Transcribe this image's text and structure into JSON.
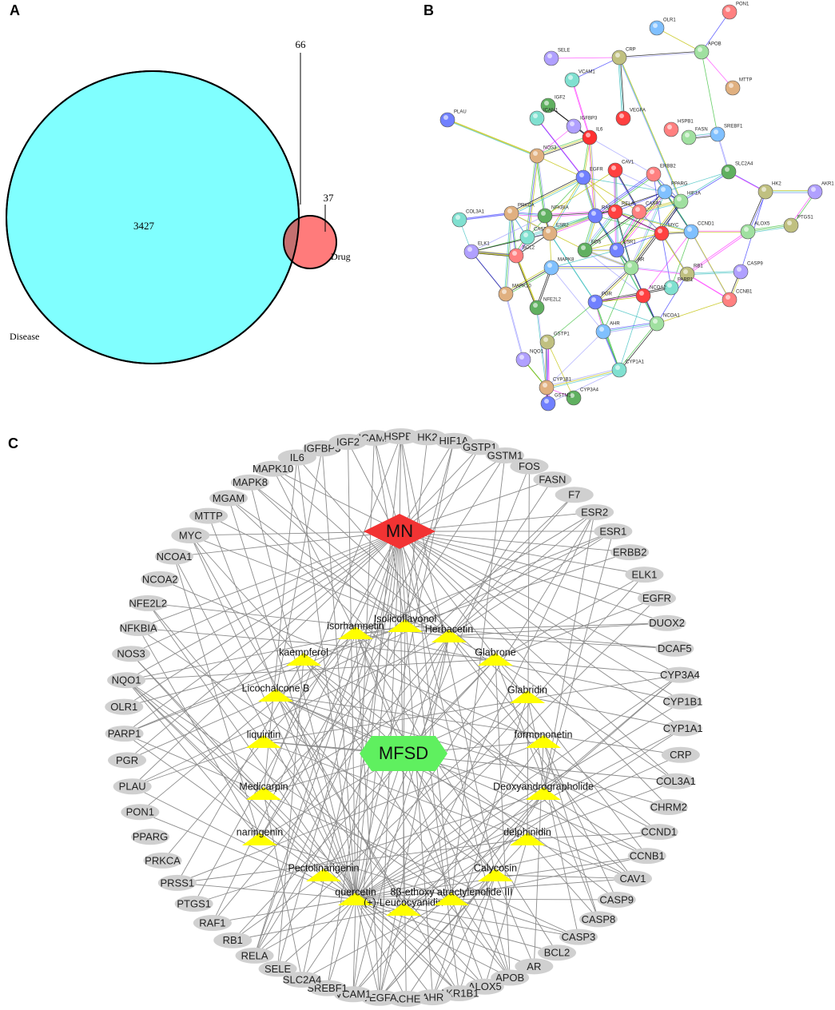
{
  "panel_a": {
    "label": "A",
    "intersection": 66,
    "disease_only": 3427,
    "drug_only": 37,
    "disease_label": "Disease",
    "drug_label": "Drug"
  },
  "panel_b": {
    "label": "B",
    "nodes": [
      "PON1",
      "OLR1",
      "APOB",
      "CRP",
      "SELE",
      "VCAM1",
      "MTTP",
      "IGF2",
      "PLAU",
      "VEGFA",
      "HSPB1",
      "SREBF1",
      "FASN",
      "IL6",
      "IGFBP3",
      "ICAM1",
      "NOS3",
      "SLC2A4",
      "EGFR",
      "CAV1",
      "ERBB2",
      "PPARG",
      "HIF1A",
      "HK2",
      "AKR1",
      "COL3A1",
      "PRKCA",
      "NFKBIA",
      "RAF1",
      "RELA",
      "CASP3",
      "CCND1",
      "ALOX5",
      "PTGS1",
      "ELK1",
      "CASP8",
      "ESR2",
      "FOS",
      "ESR1",
      "MYC",
      "BCL2",
      "MAPK8",
      "AR",
      "RB1",
      "CASP9",
      "PARP1",
      "MAPK10",
      "NFE2L2",
      "PGR",
      "NCOA2",
      "CCNB1",
      "AHR",
      "NCOA1",
      "GSTP1",
      "NQO1",
      "CYP1A1",
      "CYP1B1",
      "CYP3A4",
      "GSTM1"
    ]
  },
  "panel_c": {
    "label": "C",
    "hubs": [
      "MN",
      "MFSD"
    ],
    "compounds": [
      "isorhamnetin",
      "Isolicoflavonol",
      "Herbacetin",
      "kaempferol",
      "Glabrone",
      "Licochalcone B",
      "Glabridin",
      "liquiritin",
      "formononetin",
      "Medicarpin",
      "Deoxyandrographolide",
      "naringenin",
      "delphinidin",
      "Pectolinarigenin",
      "Calycosin",
      "quercetin",
      "(+)-Leucocyanidin",
      "8β-ethoxy atractylenolide III"
    ],
    "targets": [
      "ICAM1",
      "HSPB1",
      "HK2",
      "HIF1A",
      "GSTP1",
      "GSTM1",
      "FOS",
      "FASN",
      "F7",
      "ESR2",
      "ESR1",
      "ERBB2",
      "ELK1",
      "EGFR",
      "DUOX2",
      "DCAF5",
      "CYP3A4",
      "CYP1B1",
      "CYP1A1",
      "CRP",
      "COL3A1",
      "CHRM2",
      "CCND1",
      "CCNB1",
      "CAV1",
      "CASP9",
      "CASP8",
      "CASP3",
      "BCL2",
      "AR",
      "APOB",
      "ALOX5",
      "AKR1B1",
      "AHR",
      "ACHE",
      "VEGFA",
      "VCAM1",
      "SREBF1",
      "SLC2A4",
      "SELE",
      "RELA",
      "RB1",
      "RAF1",
      "PTGS1",
      "PRSS1",
      "PRKCA",
      "PPARG",
      "PON1",
      "PLAU",
      "PGR",
      "PARP1",
      "OLR1",
      "NQO1",
      "NOS3",
      "NFKBIA",
      "NFE2L2",
      "NCOA2",
      "NCOA1",
      "MYC",
      "MTTP",
      "MGAM",
      "MAPK8",
      "MAPK10",
      "IL6",
      "IGFBP3",
      "IGF2"
    ]
  }
}
